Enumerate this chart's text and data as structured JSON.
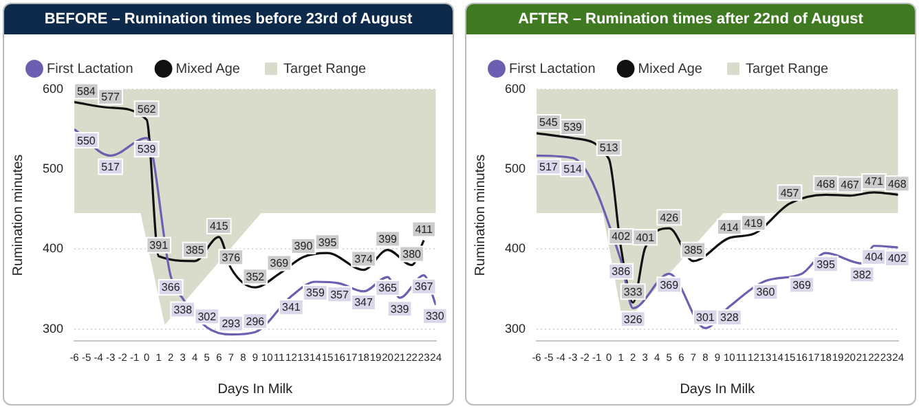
{
  "chart_data": [
    {
      "type": "line",
      "title": "BEFORE – Rumination times before 23rd of August",
      "xlabel": "Days In Milk",
      "ylabel": "Rumination minutes",
      "xlim": [
        -6,
        24
      ],
      "xticks": [
        -6,
        -5,
        -4,
        -3,
        -2,
        -1,
        0,
        1,
        2,
        3,
        4,
        5,
        6,
        7,
        8,
        9,
        10,
        11,
        12,
        13,
        14,
        15,
        16,
        17,
        18,
        19,
        20,
        21,
        22,
        23,
        24
      ],
      "ylim": [
        285,
        600
      ],
      "yticks": [
        300,
        400,
        500,
        600
      ],
      "grid": "y",
      "legend": "top left",
      "series": [
        {
          "name": "First Lactation",
          "color": "#6a5fb0",
          "x": [
            -6,
            -3,
            0,
            2,
            3,
            5,
            7,
            9,
            12,
            14,
            16,
            18,
            20,
            21,
            23,
            24
          ],
          "values": [
            550,
            517,
            539,
            366,
            338,
            302,
            293,
            296,
            341,
            359,
            357,
            347,
            365,
            339,
            367,
            330
          ],
          "value_labels": [
            "550",
            "517",
            "539",
            "366",
            "338",
            "302",
            "293",
            "296",
            "341",
            "359",
            "357",
            "347",
            "365",
            "339",
            "367",
            "330"
          ]
        },
        {
          "name": "Mixed Age",
          "color": "#111111",
          "x": [
            -6,
            -3,
            0,
            1,
            4,
            6,
            7,
            9,
            11,
            13,
            15,
            18,
            20,
            22,
            23
          ],
          "values": [
            584,
            577,
            562,
            391,
            385,
            415,
            376,
            352,
            369,
            390,
            395,
            374,
            399,
            380,
            411
          ],
          "value_labels": [
            "584",
            "577",
            "562",
            "391",
            "385",
            "415",
            "376",
            "352",
            "369",
            "390",
            "395",
            "374",
            "399",
            "380",
            "411"
          ]
        },
        {
          "name": "Target Range",
          "type": "area",
          "color": "#d9dccb",
          "x": [
            -6,
            -0.5,
            1.5,
            9.5,
            24
          ],
          "values": [
            null,
            null,
            null,
            null,
            null
          ],
          "lower": [
            445,
            445,
            305,
            445,
            445
          ],
          "upper": [
            600,
            600,
            600,
            600,
            600
          ]
        }
      ]
    },
    {
      "type": "line",
      "title": "AFTER – Rumination times after 22nd of August",
      "xlabel": "Days In Milk",
      "ylabel": "Rumination minutes",
      "xlim": [
        -6,
        24
      ],
      "xticks": [
        -6,
        -5,
        -4,
        -3,
        -2,
        -1,
        0,
        1,
        2,
        3,
        4,
        5,
        6,
        7,
        8,
        9,
        10,
        11,
        12,
        13,
        14,
        15,
        16,
        17,
        18,
        19,
        20,
        21,
        22,
        23,
        24
      ],
      "ylim": [
        285,
        600
      ],
      "yticks": [
        300,
        400,
        500,
        600
      ],
      "grid": "y",
      "legend": "top left",
      "series": [
        {
          "name": "First Lactation",
          "color": "#6a5fb0",
          "x": [
            -6,
            -3,
            1,
            2,
            5,
            8,
            10,
            13,
            16,
            18,
            21,
            22,
            24
          ],
          "values": [
            517,
            514,
            386,
            326,
            369,
            301,
            328,
            360,
            369,
            395,
            382,
            404,
            402
          ],
          "value_labels": [
            "517",
            "514",
            "386",
            "326",
            "369",
            "301",
            "328",
            "360",
            "369",
            "395",
            "382",
            "404",
            "402"
          ]
        },
        {
          "name": "Mixed Age",
          "color": "#111111",
          "x": [
            -6,
            -3,
            0,
            1,
            2,
            3,
            5,
            7,
            10,
            12,
            15,
            18,
            20,
            22,
            24
          ],
          "values": [
            545,
            539,
            513,
            402,
            333,
            401,
            426,
            385,
            414,
            419,
            457,
            468,
            467,
            471,
            468
          ],
          "value_labels": [
            "545",
            "539",
            "513",
            "402",
            "333",
            "401",
            "426",
            "385",
            "414",
            "419",
            "457",
            "468",
            "467",
            "471",
            "468"
          ]
        },
        {
          "name": "Target Range",
          "type": "area",
          "color": "#d9dccb",
          "x": [
            -6,
            -0.5,
            1.2,
            9.5,
            24
          ],
          "values": [
            null,
            null,
            null,
            null,
            null
          ],
          "lower": [
            445,
            445,
            305,
            445,
            445
          ],
          "upper": [
            600,
            600,
            600,
            600,
            600
          ]
        }
      ]
    }
  ]
}
